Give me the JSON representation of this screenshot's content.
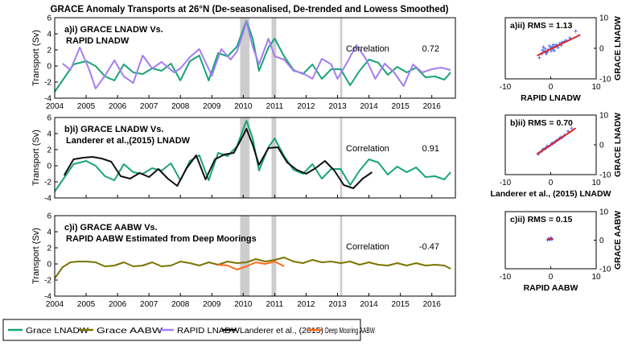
{
  "figure": {
    "title": "GRACE Anomaly Transports at 26°N (De-seasonalised, De-trended and Lowess Smoothed)"
  },
  "colors": {
    "grace_lnadw": "#1aa37a",
    "grace_aabw": "#7a7400",
    "rapid_lnadw": "#a47ef0",
    "landerer": "#111111",
    "deep_mooring": "#ff6a1a",
    "scatter_points": "#4c6ff5",
    "fit_line": "#e02020",
    "shade": "#c8c8c8"
  },
  "legend": [
    {
      "label": "Grace LNADW",
      "color_key": "grace_lnadw"
    },
    {
      "label": "Grace AABW",
      "color_key": "grace_aabw"
    },
    {
      "label": "RAPID LNADW",
      "color_key": "rapid_lnadw"
    },
    {
      "label": "Landerer et al., (2015)",
      "color_key": "landerer"
    },
    {
      "label": "Deep Mooring AABW",
      "color_key": "deep_mooring"
    }
  ],
  "chart_data": [
    {
      "type": "line",
      "panel": "a(i)",
      "label_line1": "a)i) GRACE LNADW Vs.",
      "label_line2": "RAPID LNADW",
      "correlation_label": "Correlation",
      "correlation_value": "0.72",
      "ylabel": "Transport (Sv)",
      "ylim": [
        -4,
        6
      ],
      "yticks": [
        "-4",
        "-2",
        "0",
        "2",
        "4",
        "6"
      ],
      "xlim": [
        2004,
        2016.75
      ],
      "xticks": [
        "2004",
        "2005",
        "2006",
        "2007",
        "2008",
        "2009",
        "2010",
        "2011",
        "2012",
        "2013",
        "2014",
        "2015",
        "2016"
      ],
      "shaded_periods": [
        [
          2009.9,
          2010.2
        ],
        [
          2010.9,
          2011.05
        ],
        [
          2013.08,
          2013.15
        ]
      ],
      "series": [
        {
          "name": "Grace LNADW",
          "color_key": "grace_lnadw",
          "x": [
            2004,
            2004.3,
            2004.6,
            2005,
            2005.3,
            2005.6,
            2005.9,
            2006.2,
            2006.5,
            2006.8,
            2007.1,
            2007.4,
            2007.7,
            2008,
            2008.3,
            2008.6,
            2008.9,
            2009.2,
            2009.5,
            2009.8,
            2010,
            2010.1,
            2010.3,
            2010.5,
            2010.8,
            2011,
            2011.3,
            2011.6,
            2011.9,
            2012.2,
            2012.5,
            2012.8,
            2013.1,
            2013.4,
            2013.7,
            2014,
            2014.3,
            2014.6,
            2014.9,
            2015.2,
            2015.5,
            2015.8,
            2016.1,
            2016.4,
            2016.6
          ],
          "y": [
            -3.2,
            -1.5,
            0.2,
            0.6,
            0,
            -1.3,
            -1.8,
            0.2,
            -0.8,
            -1,
            -0.3,
            -0.6,
            0.3,
            -1.8,
            0.6,
            1.3,
            -1.8,
            1.6,
            1.2,
            2.4,
            4.6,
            5.6,
            3.4,
            -0.6,
            2.3,
            3.4,
            1.2,
            -0.5,
            -1,
            0.2,
            -1.6,
            -0.4,
            -0.4,
            -2.4,
            -0.6,
            0.8,
            0.4,
            -1.1,
            -0.1,
            -0.8,
            -0.2,
            -1.4,
            -1.3,
            -1.7,
            -0.8
          ]
        },
        {
          "name": "RAPID LNADW",
          "color_key": "rapid_lnadw",
          "x": [
            2004.25,
            2004.5,
            2004.8,
            2005.1,
            2005.3,
            2005.6,
            2005.9,
            2006.2,
            2006.5,
            2006.8,
            2007.1,
            2007.4,
            2007.8,
            2008,
            2008.3,
            2008.6,
            2009,
            2009.3,
            2009.6,
            2009.8,
            2010,
            2010.1,
            2010.3,
            2010.5,
            2010.8,
            2011,
            2011.3,
            2011.6,
            2011.9,
            2012.2,
            2012.5,
            2012.8,
            2013,
            2013.3,
            2013.6,
            2013.9,
            2014.2,
            2014.5,
            2014.8,
            2015.1,
            2015.4,
            2015.7,
            2016,
            2016.3,
            2016.6
          ],
          "y": [
            0.3,
            -0.5,
            2.3,
            -0.5,
            -2.8,
            -1.2,
            0.7,
            -1.3,
            -2.1,
            1.3,
            -0.3,
            0.5,
            -0.8,
            -0.3,
            1.1,
            2.1,
            -1.2,
            2.1,
            0.8,
            1.8,
            4.2,
            5.5,
            2.4,
            0.2,
            3.4,
            1.2,
            0.8,
            -0.6,
            -0.9,
            -1.6,
            0.9,
            0.2,
            -1.6,
            0.4,
            2.6,
            0.9,
            -1.6,
            0.3,
            -0.8,
            -2.5,
            0.2,
            -0.8,
            -0.4,
            -0.2,
            -0.5
          ]
        }
      ]
    },
    {
      "type": "line",
      "panel": "b(i)",
      "label_line1": "b)i) GRACE LNADW Vs.",
      "label_line2": "Landerer et al.,(2015) LNADW",
      "correlation_label": "Correlation",
      "correlation_value": "0.91",
      "ylabel": "Transport (Sv)",
      "ylim": [
        -4,
        6
      ],
      "yticks": [
        "-4",
        "-2",
        "0",
        "2",
        "4",
        "6"
      ],
      "xlim": [
        2004,
        2016.75
      ],
      "shaded_periods": [
        [
          2009.9,
          2010.2
        ],
        [
          2010.9,
          2011.05
        ],
        [
          2013.08,
          2013.15
        ]
      ],
      "series": [
        {
          "name": "Grace LNADW",
          "color_key": "grace_lnadw",
          "x": [
            2004,
            2004.3,
            2004.6,
            2005,
            2005.3,
            2005.6,
            2005.9,
            2006.2,
            2006.5,
            2006.8,
            2007.1,
            2007.4,
            2007.7,
            2008,
            2008.3,
            2008.6,
            2008.9,
            2009.2,
            2009.5,
            2009.8,
            2010,
            2010.1,
            2010.3,
            2010.5,
            2010.8,
            2011,
            2011.3,
            2011.6,
            2011.9,
            2012.2,
            2012.5,
            2012.8,
            2013.1,
            2013.4,
            2013.7,
            2014,
            2014.3,
            2014.6,
            2014.9,
            2015.2,
            2015.5,
            2015.8,
            2016.1,
            2016.4,
            2016.6
          ],
          "y": [
            -3.2,
            -1.5,
            0.2,
            0.6,
            0,
            -1.3,
            -1.8,
            0.2,
            -0.8,
            -1,
            -0.3,
            -0.6,
            0.3,
            -1.8,
            0.6,
            1.3,
            -1.8,
            1.6,
            1.2,
            2.4,
            4.6,
            5.6,
            3.4,
            -0.6,
            2.3,
            3.4,
            1.2,
            -0.5,
            -1,
            0.2,
            -1.6,
            -0.4,
            -0.4,
            -2.4,
            -0.6,
            0.8,
            0.4,
            -1.1,
            -0.1,
            -0.8,
            -0.2,
            -1.4,
            -1.3,
            -1.7,
            -0.8
          ]
        },
        {
          "name": "Landerer et al., (2015)",
          "color_key": "landerer",
          "x": [
            2004.3,
            2004.6,
            2004.9,
            2005.2,
            2005.5,
            2005.8,
            2006.1,
            2006.4,
            2006.7,
            2007,
            2007.3,
            2007.6,
            2007.9,
            2008.2,
            2008.5,
            2008.8,
            2009.1,
            2009.4,
            2009.7,
            2010,
            2010.1,
            2010.3,
            2010.5,
            2010.8,
            2011.1,
            2011.4,
            2011.7,
            2012,
            2012.3,
            2012.6,
            2012.9,
            2013.2,
            2013.5,
            2013.8,
            2014.1
          ],
          "y": [
            -1.2,
            0.8,
            1,
            1.1,
            0.9,
            0.5,
            -1.3,
            -1.6,
            -0.9,
            -1.4,
            -0.4,
            -1.6,
            -2.5,
            -0.3,
            1.3,
            -1.7,
            0.8,
            1.4,
            1.6,
            3.8,
            4.6,
            2.6,
            0.1,
            2.2,
            2.3,
            0.4,
            -0.5,
            -1,
            -0.3,
            0.6,
            -0.6,
            -2.4,
            -2.8,
            -1.6,
            -0.8
          ]
        }
      ]
    },
    {
      "type": "line",
      "panel": "c(i)",
      "label_line1": "c)i) GRACE AABW Vs.",
      "label_line2": "RAPID AABW Estimated from Deep Moorings",
      "correlation_label": "Correlation",
      "correlation_value": "-0.47",
      "ylabel": "Transport (Sv)",
      "ylim": [
        -4,
        6
      ],
      "yticks": [
        "-4",
        "-2",
        "0",
        "2",
        "4",
        "6"
      ],
      "xlim": [
        2004,
        2016.75
      ],
      "xticks": [
        "2004",
        "2005",
        "2006",
        "2007",
        "2008",
        "2009",
        "2010",
        "2011",
        "2012",
        "2013",
        "2014",
        "2015",
        "2016"
      ],
      "shaded_periods": [
        [
          2009.9,
          2010.2
        ],
        [
          2010.9,
          2011.05
        ],
        [
          2013.08,
          2013.15
        ]
      ],
      "series": [
        {
          "name": "Grace AABW",
          "color_key": "grace_aabw",
          "x": [
            2004,
            2004.25,
            2004.5,
            2004.75,
            2005,
            2005.3,
            2005.6,
            2005.9,
            2006.2,
            2006.5,
            2006.8,
            2007.1,
            2007.4,
            2007.7,
            2008,
            2008.3,
            2008.6,
            2008.9,
            2009.2,
            2009.5,
            2009.8,
            2010.1,
            2010.4,
            2010.7,
            2011,
            2011.3,
            2011.6,
            2011.9,
            2012.2,
            2012.5,
            2012.8,
            2013.1,
            2013.4,
            2013.7,
            2014,
            2014.3,
            2014.6,
            2014.9,
            2015.2,
            2015.5,
            2015.8,
            2016.1,
            2016.4,
            2016.6
          ],
          "y": [
            -1.8,
            -0.4,
            0.2,
            0.3,
            0.3,
            0.2,
            -0.3,
            -0.2,
            0.2,
            -0.3,
            -0.2,
            0.2,
            -0.3,
            -0.2,
            0.3,
            0.1,
            -0.2,
            0.2,
            -0.1,
            0.3,
            0.1,
            0.2,
            0.6,
            0.3,
            0.5,
            0.8,
            0.3,
            0.1,
            0.5,
            0.2,
            0.3,
            0.1,
            0.3,
            -0.1,
            0.2,
            -0.1,
            -0.2,
            0.1,
            -0.2,
            0.1,
            -0.2,
            -0.1,
            -0.2,
            -0.6
          ]
        },
        {
          "name": "Deep Mooring AABW",
          "color_key": "deep_mooring",
          "x": [
            2009.2,
            2009.5,
            2009.8,
            2010.1,
            2010.4,
            2010.7,
            2011,
            2011.3
          ],
          "y": [
            -0.1,
            -0.2,
            -0.7,
            -0.3,
            0.2,
            0,
            0.3,
            -0.3
          ]
        }
      ]
    },
    {
      "type": "scatter",
      "panel": "a(ii)",
      "label": "a)ii) RMS = 1.13",
      "xlabel": "RAPID LNADW",
      "ylabel": "GRACE LNADW",
      "xlim": [
        -10,
        10
      ],
      "ylim": [
        -10,
        10
      ],
      "xticks": [
        "-10",
        "0",
        "10"
      ],
      "yticks": [
        "-10",
        "0",
        "10"
      ],
      "points": {
        "x": [
          -2,
          -1.5,
          -1,
          -0.5,
          0,
          0.5,
          1,
          1.5,
          -1.8,
          -0.8,
          0.3,
          1.2,
          2,
          -1.2,
          0.8,
          2.5,
          3,
          4.2,
          5.5,
          -2.5,
          -0.3,
          0.6,
          1.6,
          -1,
          2.3,
          3.4,
          0.1,
          -1.6
        ],
        "y": [
          -1.8,
          -1,
          -1.4,
          -0.5,
          0.2,
          -0.3,
          0.6,
          0.9,
          -0.6,
          -1.2,
          0.5,
          1.1,
          1.6,
          -0.2,
          -0.8,
          2,
          2.2,
          3.4,
          5.6,
          -3.1,
          0.8,
          1.2,
          0.2,
          -1.8,
          1,
          2.6,
          -0.9,
          0.4
        ]
      },
      "fit": {
        "x": [
          -3,
          6.5
        ],
        "y": [
          -2.4,
          4.4
        ]
      }
    },
    {
      "type": "scatter",
      "panel": "b(ii)",
      "label": "b)ii) RMS = 0.70",
      "xlabel": "Landerer et al., (2015) LNADW",
      "ylabel": "GRACE LNADW",
      "xlim": [
        -10,
        10
      ],
      "ylim": [
        -10,
        10
      ],
      "xticks": [
        "-10",
        "0",
        "10"
      ],
      "yticks": [
        "-10",
        "0",
        "10"
      ],
      "points": {
        "x": [
          -2.5,
          -2,
          -1.5,
          -1,
          -0.5,
          0,
          0.5,
          1,
          1.5,
          2,
          2.5,
          3,
          3.8,
          4.6,
          -1.8,
          -0.8,
          0.3,
          1.2,
          2.2,
          -2.8,
          0.8,
          1.8,
          -1.2
        ],
        "y": [
          -2.6,
          -2.2,
          -1.4,
          -1,
          -0.6,
          -0.1,
          0.4,
          1,
          1.6,
          2.2,
          2.4,
          3.2,
          4.6,
          5.6,
          -1.6,
          -0.4,
          0.6,
          1.4,
          2.6,
          -3.2,
          0.8,
          1.8,
          -1.4
        ]
      },
      "fit": {
        "x": [
          -3,
          5.5
        ],
        "y": [
          -3.1,
          5.6
        ]
      }
    },
    {
      "type": "scatter",
      "panel": "c(ii)",
      "label": "c)ii) RMS = 0.15",
      "xlabel": "RAPID AABW",
      "ylabel": "GRACE AABW",
      "xlim": [
        -10,
        10
      ],
      "ylim": [
        -10,
        10
      ],
      "xticks": [
        "-10",
        "0",
        "10"
      ],
      "yticks": [
        "-10",
        "0",
        "10"
      ],
      "points": {
        "x": [
          -0.7,
          -0.3,
          0.2,
          -0.1,
          0.3,
          -0.5,
          0,
          0.2
        ],
        "y": [
          0.1,
          0.3,
          0.6,
          0.2,
          0.3,
          0.5,
          0.8,
          0.4
        ]
      },
      "fit": {
        "x": [
          -0.8,
          0.4
        ],
        "y": [
          0.3,
          0.5
        ]
      }
    }
  ]
}
